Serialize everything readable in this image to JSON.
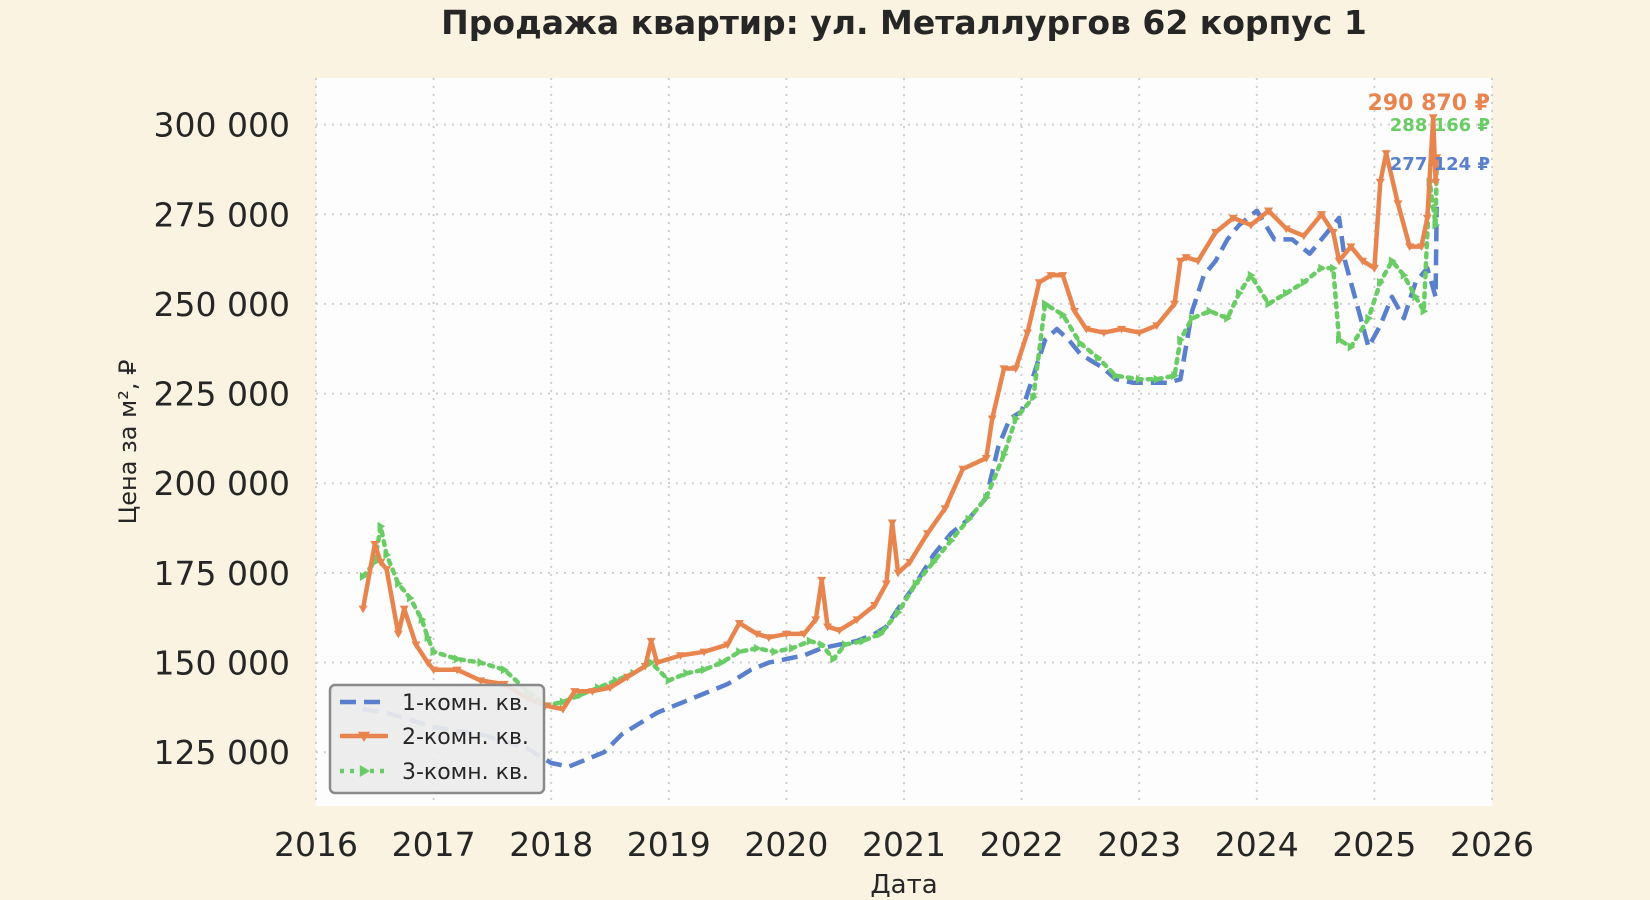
{
  "chart_data": {
    "type": "line",
    "title": "Продажа квартир: ул. Металлургов 62 корпус 1",
    "xlabel": "Дата",
    "ylabel": "Цена за м², ₽",
    "xlim": [
      2016.0,
      2026.0
    ],
    "ylim": [
      110000,
      313000
    ],
    "x_ticks": [
      2016,
      2017,
      2018,
      2019,
      2020,
      2021,
      2022,
      2023,
      2024,
      2025,
      2026
    ],
    "y_ticks": [
      125000,
      150000,
      175000,
      200000,
      225000,
      250000,
      275000,
      300000
    ],
    "y_tick_labels": [
      "125 000",
      "150 000",
      "175 000",
      "200 000",
      "225 000",
      "250 000",
      "275 000",
      "300 000"
    ],
    "grid": true,
    "legend_position": "lower-left",
    "colors": {
      "background": "#faf3e1",
      "plot_background": "#fdfdfd",
      "grid": "#cfcfcf",
      "text": "#262626"
    },
    "series": [
      {
        "name": "1-комн. кв.",
        "color": "#5a7fcc",
        "style": "dashed",
        "marker": "none",
        "end_label": "277 124 ₽",
        "x": [
          2016.4,
          2016.6,
          2016.8,
          2017.0,
          2017.2,
          2017.4,
          2017.6,
          2017.8,
          2017.9,
          2018.0,
          2018.15,
          2018.3,
          2018.45,
          2018.6,
          2018.75,
          2018.9,
          2019.05,
          2019.2,
          2019.35,
          2019.5,
          2019.6,
          2019.7,
          2019.85,
          2020.0,
          2020.15,
          2020.3,
          2020.45,
          2020.6,
          2020.75,
          2020.85,
          2020.95,
          2021.1,
          2021.25,
          2021.4,
          2021.55,
          2021.7,
          2021.8,
          2021.9,
          2022.0,
          2022.1,
          2022.2,
          2022.3,
          2022.4,
          2022.5,
          2022.6,
          2022.7,
          2022.8,
          2022.95,
          2023.1,
          2023.25,
          2023.35,
          2023.45,
          2023.55,
          2023.65,
          2023.75,
          2023.85,
          2024.0,
          2024.15,
          2024.3,
          2024.45,
          2024.6,
          2024.7,
          2024.75,
          2024.85,
          2024.95,
          2025.05,
          2025.15,
          2025.25,
          2025.35,
          2025.45,
          2025.52,
          2025.53
        ],
        "y": [
          137000,
          136000,
          134000,
          132000,
          131000,
          130000,
          128000,
          126000,
          124000,
          122000,
          121000,
          123000,
          125000,
          130000,
          133000,
          136000,
          138000,
          140000,
          142000,
          144000,
          146000,
          148000,
          150000,
          151000,
          152000,
          154000,
          155000,
          156000,
          158000,
          160000,
          165000,
          172000,
          180000,
          186000,
          190000,
          196000,
          210000,
          218000,
          220000,
          230000,
          240000,
          243000,
          240000,
          236000,
          234000,
          232000,
          229000,
          228000,
          228000,
          228000,
          229000,
          248000,
          258000,
          262000,
          268000,
          272000,
          276000,
          268000,
          268000,
          264000,
          270000,
          274000,
          262000,
          250000,
          238000,
          244000,
          252000,
          246000,
          256000,
          260000,
          252000,
          277124
        ]
      },
      {
        "name": "2-комн. кв.",
        "color": "#e8854f",
        "style": "solid",
        "marker": "triangle-down",
        "end_label": "290 870 ₽",
        "x": [
          2016.4,
          2016.5,
          2016.55,
          2016.6,
          2016.7,
          2016.75,
          2016.85,
          2016.95,
          2017.0,
          2017.2,
          2017.4,
          2017.6,
          2017.8,
          2017.95,
          2018.1,
          2018.2,
          2018.35,
          2018.5,
          2018.65,
          2018.8,
          2018.85,
          2018.9,
          2019.1,
          2019.3,
          2019.5,
          2019.6,
          2019.75,
          2019.85,
          2020.0,
          2020.15,
          2020.25,
          2020.3,
          2020.35,
          2020.45,
          2020.6,
          2020.75,
          2020.85,
          2020.9,
          2020.95,
          2021.05,
          2021.2,
          2021.35,
          2021.5,
          2021.7,
          2021.75,
          2021.85,
          2021.95,
          2022.05,
          2022.15,
          2022.25,
          2022.35,
          2022.45,
          2022.55,
          2022.7,
          2022.85,
          2023.0,
          2023.15,
          2023.3,
          2023.35,
          2023.4,
          2023.5,
          2023.65,
          2023.8,
          2023.95,
          2024.1,
          2024.25,
          2024.4,
          2024.55,
          2024.65,
          2024.7,
          2024.8,
          2024.9,
          2025.0,
          2025.05,
          2025.1,
          2025.2,
          2025.3,
          2025.4,
          2025.45,
          2025.5,
          2025.52,
          2025.53
        ],
        "y": [
          165000,
          183000,
          178000,
          176000,
          158000,
          165000,
          155000,
          150000,
          148000,
          148000,
          145000,
          144000,
          140000,
          138000,
          137000,
          142000,
          142000,
          143000,
          146000,
          149000,
          156000,
          150000,
          152000,
          153000,
          155000,
          161000,
          158000,
          157000,
          158000,
          158000,
          162000,
          173000,
          160000,
          159000,
          162000,
          166000,
          172000,
          189000,
          175000,
          178000,
          186000,
          193000,
          204000,
          207000,
          218000,
          232000,
          232000,
          242000,
          256000,
          258000,
          258000,
          248000,
          243000,
          242000,
          243000,
          242000,
          244000,
          250000,
          262000,
          263000,
          262000,
          270000,
          274000,
          272000,
          276000,
          271000,
          269000,
          275000,
          270000,
          262000,
          266000,
          262000,
          260000,
          284000,
          292000,
          278000,
          266000,
          266000,
          274000,
          302000,
          284000,
          290870
        ]
      },
      {
        "name": "3-комн. кв.",
        "color": "#6acc65",
        "style": "dotted",
        "marker": "triangle-right",
        "end_label": "288 166 ₽",
        "x": [
          2016.4,
          2016.5,
          2016.55,
          2016.6,
          2016.7,
          2016.8,
          2016.9,
          2016.95,
          2017.0,
          2017.2,
          2017.4,
          2017.6,
          2017.8,
          2017.95,
          2018.1,
          2018.25,
          2018.4,
          2018.55,
          2018.7,
          2018.85,
          2019.0,
          2019.15,
          2019.3,
          2019.45,
          2019.6,
          2019.75,
          2019.9,
          2020.05,
          2020.2,
          2020.3,
          2020.4,
          2020.5,
          2020.65,
          2020.8,
          2020.95,
          2021.1,
          2021.25,
          2021.4,
          2021.55,
          2021.7,
          2021.85,
          2021.95,
          2022.1,
          2022.2,
          2022.35,
          2022.5,
          2022.65,
          2022.8,
          2023.0,
          2023.15,
          2023.3,
          2023.35,
          2023.45,
          2023.6,
          2023.75,
          2023.85,
          2023.95,
          2024.1,
          2024.25,
          2024.4,
          2024.55,
          2024.65,
          2024.7,
          2024.8,
          2024.95,
          2025.05,
          2025.15,
          2025.25,
          2025.35,
          2025.42,
          2025.47,
          2025.52,
          2025.53
        ],
        "y": [
          174000,
          178000,
          188000,
          180000,
          172000,
          168000,
          162000,
          157000,
          153000,
          151000,
          150000,
          148000,
          142000,
          138000,
          139000,
          141000,
          143000,
          145000,
          147000,
          150000,
          145000,
          147000,
          148000,
          150000,
          153000,
          154000,
          153000,
          154000,
          156000,
          155000,
          151000,
          155000,
          156000,
          158000,
          164000,
          172000,
          178000,
          184000,
          190000,
          196000,
          208000,
          218000,
          224000,
          250000,
          247000,
          239000,
          235000,
          230000,
          229000,
          229000,
          230000,
          240000,
          246000,
          248000,
          246000,
          253000,
          258000,
          250000,
          253000,
          256000,
          260000,
          260000,
          240000,
          238000,
          246000,
          256000,
          262000,
          258000,
          252000,
          248000,
          284000,
          272000,
          288166
        ]
      }
    ]
  }
}
